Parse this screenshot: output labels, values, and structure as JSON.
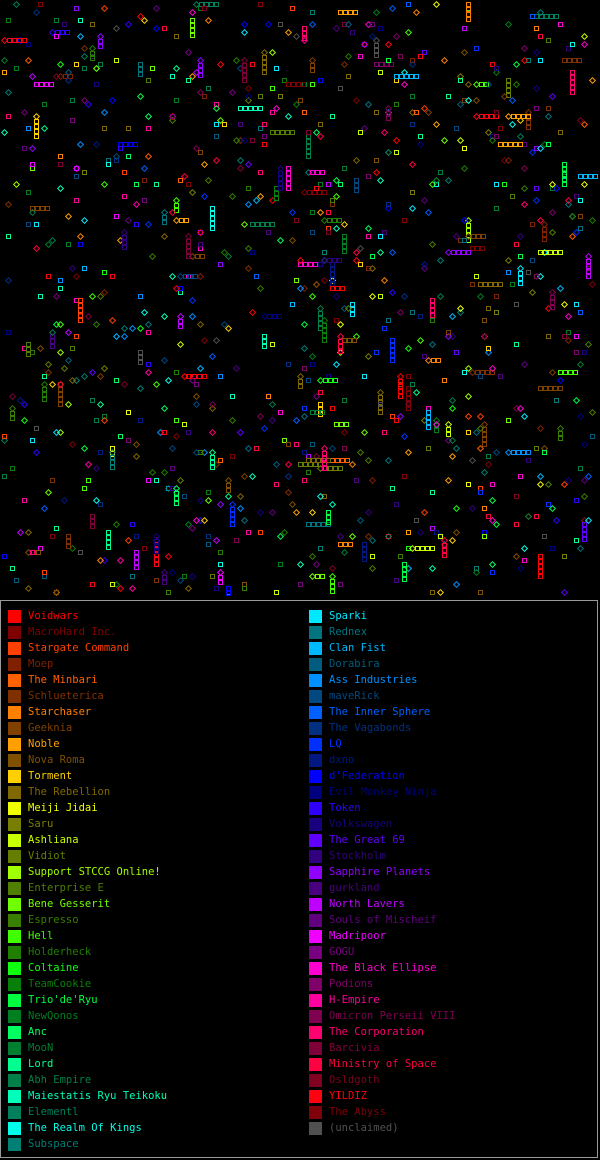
{
  "legend": {
    "left": [
      {
        "label": "Voidwars",
        "color": "#ff0000"
      },
      {
        "label": "MacroHard Inc.",
        "color": "#7f0000"
      },
      {
        "label": "Stargate Command",
        "color": "#ff4000"
      },
      {
        "label": "Moep",
        "color": "#7f2000"
      },
      {
        "label": "The Minbari",
        "color": "#ff6000"
      },
      {
        "label": "Schlueterica",
        "color": "#7f3000"
      },
      {
        "label": "Starchaser",
        "color": "#ff8000"
      },
      {
        "label": "Geeknia",
        "color": "#7f4000"
      },
      {
        "label": "Noble",
        "color": "#ffa000"
      },
      {
        "label": "Nova Roma",
        "color": "#7f5000"
      },
      {
        "label": "Torment",
        "color": "#ffd000"
      },
      {
        "label": "The Rebellion",
        "color": "#7f6800"
      },
      {
        "label": "Meiji Jidai",
        "color": "#f0ff00"
      },
      {
        "label": "Saru",
        "color": "#787f00"
      },
      {
        "label": "Ashliana",
        "color": "#c8ff00"
      },
      {
        "label": "Vidiot",
        "color": "#647f00"
      },
      {
        "label": "Support STCCG Online!",
        "color": "#a0ff00"
      },
      {
        "label": "Enterprise E",
        "color": "#507f00"
      },
      {
        "label": "Bene Gesserit",
        "color": "#70ff00"
      },
      {
        "label": "Espresso",
        "color": "#387f00"
      },
      {
        "label": "Hell",
        "color": "#40ff00"
      },
      {
        "label": "Holderheck",
        "color": "#207f00"
      },
      {
        "label": "Coltaine",
        "color": "#10ff10"
      },
      {
        "label": "TeamCookie",
        "color": "#087f08"
      },
      {
        "label": "Trio'de'Ryu",
        "color": "#00ff40"
      },
      {
        "label": "NewQonos",
        "color": "#007f20"
      },
      {
        "label": "Anc",
        "color": "#00ff60"
      },
      {
        "label": "MooN",
        "color": "#007f30"
      },
      {
        "label": "Lord",
        "color": "#00ff90"
      },
      {
        "label": "Abh Empire",
        "color": "#007f48"
      },
      {
        "label": "Maiestatis Ryu Teikoku",
        "color": "#00ffb8"
      },
      {
        "label": "Elementl",
        "color": "#007f5c"
      },
      {
        "label": "The Realm Of Kings",
        "color": "#00ffe8"
      },
      {
        "label": "Subspace",
        "color": "#007f74"
      }
    ],
    "right": [
      {
        "label": "Sparki",
        "color": "#00e8ff"
      },
      {
        "label": "Rednex",
        "color": "#00747f"
      },
      {
        "label": "Clan Fist",
        "color": "#00b8ff"
      },
      {
        "label": "Dorabira",
        "color": "#005c7f"
      },
      {
        "label": "Ass Industries",
        "color": "#0090ff"
      },
      {
        "label": "maveRick",
        "color": "#00487f"
      },
      {
        "label": "The Inner Sphere",
        "color": "#0060ff"
      },
      {
        "label": "The Vagabonds",
        "color": "#00307f"
      },
      {
        "label": "LQ",
        "color": "#0030ff"
      },
      {
        "label": "dxno",
        "color": "#00187f"
      },
      {
        "label": "d'Federation",
        "color": "#0000ff"
      },
      {
        "label": "Evil Monkey Ninja",
        "color": "#00007f"
      },
      {
        "label": "Token",
        "color": "#3000ff"
      },
      {
        "label": "Volkswagen",
        "color": "#18007f"
      },
      {
        "label": "The Great 69",
        "color": "#6000ff"
      },
      {
        "label": "Stockholm",
        "color": "#30007f"
      },
      {
        "label": "Sapphire Planets",
        "color": "#9000ff"
      },
      {
        "label": "gurkland",
        "color": "#48007f"
      },
      {
        "label": "North Lavers",
        "color": "#c000ff"
      },
      {
        "label": "Souls of Mischeif",
        "color": "#60007f"
      },
      {
        "label": "Madripoor",
        "color": "#f000ff"
      },
      {
        "label": "GOGU",
        "color": "#78007f"
      },
      {
        "label": "The Black Ellipse",
        "color": "#ff00d0"
      },
      {
        "label": "Podions",
        "color": "#7f0068"
      },
      {
        "label": "H-Empire",
        "color": "#ff00a0"
      },
      {
        "label": "Omicron Perseii VIII",
        "color": "#7f0050"
      },
      {
        "label": "The Corporation",
        "color": "#ff0070"
      },
      {
        "label": "Barcivia",
        "color": "#7f0038"
      },
      {
        "label": "Ministry of Space",
        "color": "#ff0040"
      },
      {
        "label": "Osldgoth",
        "color": "#7f0020"
      },
      {
        "label": "YILDIZ",
        "color": "#ff0010"
      },
      {
        "label": "The Abyss",
        "color": "#7f0008"
      },
      {
        "label": "(unclaimed)",
        "color": "#505050"
      }
    ]
  }
}
